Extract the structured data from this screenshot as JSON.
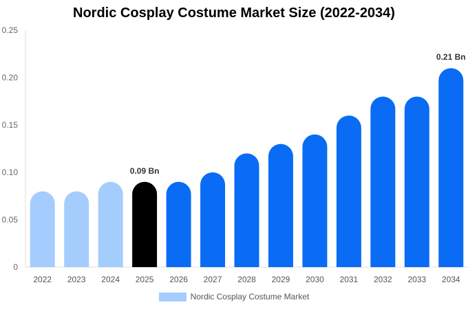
{
  "chart_data": {
    "type": "bar",
    "title": "Nordic Cosplay Costume Market Size (2022-2034)",
    "categories": [
      "2022",
      "2023",
      "2024",
      "2025",
      "2026",
      "2027",
      "2028",
      "2029",
      "2030",
      "2031",
      "2032",
      "2033",
      "2034"
    ],
    "series": [
      {
        "name": "Nordic Cosplay Costume Market",
        "values": [
          0.08,
          0.08,
          0.09,
          0.09,
          0.09,
          0.1,
          0.12,
          0.13,
          0.14,
          0.16,
          0.18,
          0.18,
          0.21
        ]
      }
    ],
    "ylim": [
      0,
      0.25
    ],
    "yticks": [
      "0",
      "0.05",
      "0.10",
      "0.15",
      "0.20",
      "0.25"
    ],
    "annotations": [
      {
        "category": "2025",
        "text": "0.09 Bn"
      },
      {
        "category": "2034",
        "text": "0.21 Bn"
      }
    ],
    "bar_colors": {
      "historic": "#a4cdfd",
      "current": "#000000",
      "forecast": "#0a6cf5"
    },
    "highlight_category": "2025",
    "legend_position": "bottom",
    "grid": false
  }
}
